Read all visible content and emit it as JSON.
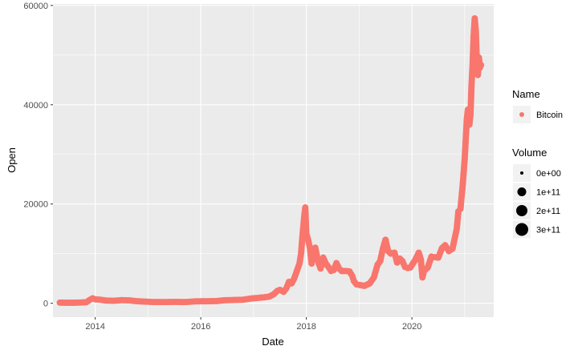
{
  "chart_data": {
    "type": "scatter",
    "xlabel": "Date",
    "ylabel": "Open",
    "xlim": [
      2013.2,
      2021.55
    ],
    "ylim": [
      -2800,
      60300
    ],
    "x_ticks": [
      2014,
      2016,
      2018,
      2020
    ],
    "x_tick_labels": [
      "2014",
      "2016",
      "2018",
      "2020"
    ],
    "y_ticks": [
      0,
      20000,
      40000,
      60000
    ],
    "y_tick_labels": [
      "0",
      "20000",
      "40000",
      "60000"
    ],
    "grid": true,
    "panel_background": "#ebebeb",
    "series": [
      {
        "name": "Bitcoin",
        "color": "#f8766d",
        "points": [
          [
            2013.33,
            130
          ],
          [
            2013.5,
            100
          ],
          [
            2013.67,
            120
          ],
          [
            2013.83,
            200
          ],
          [
            2013.9,
            700
          ],
          [
            2013.95,
            1000
          ],
          [
            2014.0,
            800
          ],
          [
            2014.1,
            700
          ],
          [
            2014.2,
            550
          ],
          [
            2014.35,
            500
          ],
          [
            2014.5,
            620
          ],
          [
            2014.65,
            580
          ],
          [
            2014.8,
            400
          ],
          [
            2014.95,
            330
          ],
          [
            2015.1,
            250
          ],
          [
            2015.3,
            240
          ],
          [
            2015.5,
            270
          ],
          [
            2015.7,
            240
          ],
          [
            2015.9,
            380
          ],
          [
            2016.1,
            410
          ],
          [
            2016.3,
            440
          ],
          [
            2016.45,
            600
          ],
          [
            2016.6,
            650
          ],
          [
            2016.8,
            700
          ],
          [
            2016.95,
            950
          ],
          [
            2017.1,
            1100
          ],
          [
            2017.2,
            1200
          ],
          [
            2017.3,
            1350
          ],
          [
            2017.38,
            1800
          ],
          [
            2017.45,
            2500
          ],
          [
            2017.5,
            2700
          ],
          [
            2017.57,
            2300
          ],
          [
            2017.62,
            3000
          ],
          [
            2017.67,
            4300
          ],
          [
            2017.72,
            4000
          ],
          [
            2017.77,
            5000
          ],
          [
            2017.82,
            6500
          ],
          [
            2017.87,
            8000
          ],
          [
            2017.9,
            10000
          ],
          [
            2017.93,
            14000
          ],
          [
            2017.96,
            17500
          ],
          [
            2017.98,
            19300
          ],
          [
            2018.0,
            14000
          ],
          [
            2018.03,
            13000
          ],
          [
            2018.07,
            11000
          ],
          [
            2018.1,
            8000
          ],
          [
            2018.13,
            10500
          ],
          [
            2018.17,
            11200
          ],
          [
            2018.22,
            8500
          ],
          [
            2018.27,
            7000
          ],
          [
            2018.32,
            9200
          ],
          [
            2018.37,
            8000
          ],
          [
            2018.42,
            7300
          ],
          [
            2018.47,
            6500
          ],
          [
            2018.52,
            6700
          ],
          [
            2018.57,
            8100
          ],
          [
            2018.62,
            7000
          ],
          [
            2018.67,
            6500
          ],
          [
            2018.75,
            6500
          ],
          [
            2018.82,
            6400
          ],
          [
            2018.87,
            5500
          ],
          [
            2018.9,
            4500
          ],
          [
            2018.95,
            3800
          ],
          [
            2019.0,
            3700
          ],
          [
            2019.1,
            3500
          ],
          [
            2019.2,
            4000
          ],
          [
            2019.28,
            5200
          ],
          [
            2019.35,
            7800
          ],
          [
            2019.4,
            8500
          ],
          [
            2019.45,
            11000
          ],
          [
            2019.5,
            12800
          ],
          [
            2019.55,
            10500
          ],
          [
            2019.6,
            10000
          ],
          [
            2019.67,
            10200
          ],
          [
            2019.72,
            8200
          ],
          [
            2019.77,
            9000
          ],
          [
            2019.82,
            8500
          ],
          [
            2019.87,
            7300
          ],
          [
            2019.92,
            7100
          ],
          [
            2019.97,
            7200
          ],
          [
            2020.05,
            8500
          ],
          [
            2020.1,
            9500
          ],
          [
            2020.13,
            10200
          ],
          [
            2020.17,
            8800
          ],
          [
            2020.2,
            5200
          ],
          [
            2020.23,
            6500
          ],
          [
            2020.3,
            7200
          ],
          [
            2020.37,
            9400
          ],
          [
            2020.43,
            9300
          ],
          [
            2020.5,
            9200
          ],
          [
            2020.57,
            11100
          ],
          [
            2020.63,
            11700
          ],
          [
            2020.7,
            10500
          ],
          [
            2020.77,
            11000
          ],
          [
            2020.82,
            13500
          ],
          [
            2020.85,
            15000
          ],
          [
            2020.88,
            18500
          ],
          [
            2020.92,
            19000
          ],
          [
            2020.96,
            23500
          ],
          [
            2021.0,
            29000
          ],
          [
            2021.02,
            33000
          ],
          [
            2021.04,
            37000
          ],
          [
            2021.06,
            39000
          ],
          [
            2021.09,
            36000
          ],
          [
            2021.11,
            38000
          ],
          [
            2021.13,
            44000
          ],
          [
            2021.15,
            48000
          ],
          [
            2021.17,
            54000
          ],
          [
            2021.19,
            57400
          ],
          [
            2021.21,
            55000
          ],
          [
            2021.23,
            49000
          ],
          [
            2021.25,
            46000
          ],
          [
            2021.27,
            49500
          ],
          [
            2021.29,
            47500
          ],
          [
            2021.31,
            48000
          ]
        ]
      }
    ],
    "legend": {
      "position": "right",
      "name_title": "Name",
      "name_items": [
        {
          "label": "Bitcoin",
          "color": "#f8766d"
        }
      ],
      "volume_title": "Volume",
      "volume_items": [
        {
          "label": "0e+00",
          "volume": 0
        },
        {
          "label": "1e+11",
          "volume": 100000000000
        },
        {
          "label": "2e+11",
          "volume": 200000000000
        },
        {
          "label": "3e+11",
          "volume": 300000000000
        }
      ]
    }
  }
}
